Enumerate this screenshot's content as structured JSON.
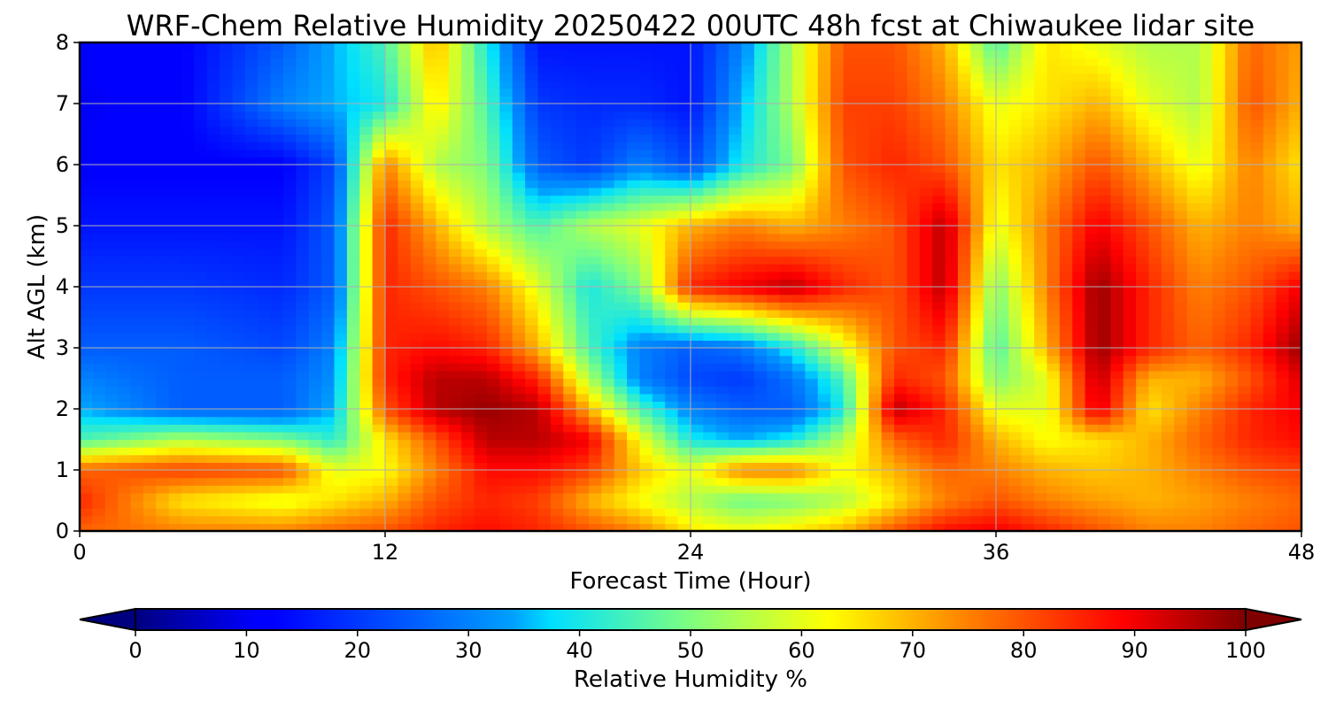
{
  "chart_data": {
    "type": "heatmap",
    "title": "WRF-Chem Relative Humidity 20250422 00UTC 48h fcst at Chiwaukee lidar site",
    "xlabel": "Forecast Time (Hour)",
    "ylabel": "Alt AGL (km)",
    "xlim": [
      0,
      48
    ],
    "ylim": [
      0,
      8
    ],
    "xticks": [
      0,
      12,
      24,
      36,
      48
    ],
    "yticks": [
      0,
      1,
      2,
      3,
      4,
      5,
      6,
      7,
      8
    ],
    "grid": true,
    "colormap": "jet",
    "colorbar": {
      "label": "Relative Humidity %",
      "range": [
        0,
        100
      ],
      "ticks": [
        0,
        10,
        20,
        30,
        40,
        50,
        60,
        70,
        80,
        90,
        100
      ],
      "extend": "both",
      "orientation": "horizontal"
    },
    "x": [
      0,
      4,
      8,
      10,
      12,
      14,
      16,
      18,
      20,
      22,
      24,
      26,
      28,
      30,
      32,
      34,
      36,
      38,
      40,
      42,
      44,
      46,
      48
    ],
    "y": [
      0,
      0.5,
      1,
      1.5,
      2,
      2.5,
      3,
      4,
      5,
      6,
      7,
      8
    ],
    "z": [
      [
        78,
        75,
        75,
        78,
        80,
        85,
        88,
        85,
        80,
        75,
        65,
        62,
        65,
        70,
        80,
        88,
        90,
        85,
        80,
        75,
        75,
        78,
        80
      ],
      [
        85,
        65,
        60,
        65,
        70,
        80,
        85,
        82,
        70,
        62,
        55,
        48,
        50,
        55,
        65,
        75,
        80,
        75,
        72,
        70,
        72,
        75,
        78
      ],
      [
        78,
        82,
        80,
        60,
        62,
        75,
        88,
        88,
        82,
        68,
        60,
        75,
        75,
        62,
        70,
        78,
        75,
        70,
        68,
        70,
        75,
        80,
        82
      ],
      [
        45,
        55,
        50,
        42,
        65,
        80,
        95,
        95,
        90,
        62,
        40,
        35,
        40,
        55,
        78,
        85,
        70,
        62,
        65,
        70,
        78,
        85,
        88
      ],
      [
        35,
        25,
        25,
        35,
        80,
        95,
        98,
        95,
        70,
        45,
        30,
        25,
        25,
        40,
        95,
        85,
        60,
        60,
        92,
        65,
        75,
        85,
        90
      ],
      [
        30,
        25,
        25,
        32,
        85,
        95,
        95,
        85,
        55,
        30,
        22,
        20,
        28,
        45,
        85,
        80,
        50,
        60,
        95,
        70,
        70,
        80,
        92
      ],
      [
        25,
        25,
        22,
        30,
        85,
        88,
        85,
        70,
        45,
        30,
        25,
        28,
        40,
        60,
        80,
        85,
        45,
        70,
        98,
        85,
        78,
        85,
        98
      ],
      [
        20,
        20,
        18,
        25,
        85,
        80,
        75,
        60,
        40,
        50,
        85,
        90,
        95,
        85,
        80,
        95,
        50,
        75,
        98,
        85,
        75,
        80,
        90
      ],
      [
        15,
        15,
        15,
        25,
        85,
        70,
        55,
        45,
        55,
        60,
        70,
        75,
        70,
        75,
        80,
        95,
        60,
        75,
        90,
        80,
        70,
        75,
        70
      ],
      [
        12,
        12,
        12,
        22,
        75,
        55,
        50,
        25,
        20,
        30,
        22,
        40,
        50,
        80,
        85,
        80,
        65,
        70,
        80,
        70,
        60,
        75,
        65
      ],
      [
        10,
        12,
        30,
        35,
        40,
        65,
        45,
        20,
        18,
        18,
        15,
        35,
        55,
        82,
        82,
        75,
        60,
        65,
        70,
        60,
        55,
        80,
        70
      ],
      [
        12,
        12,
        25,
        35,
        45,
        70,
        40,
        15,
        15,
        15,
        15,
        30,
        55,
        80,
        80,
        70,
        45,
        65,
        60,
        55,
        55,
        78,
        72
      ]
    ]
  }
}
